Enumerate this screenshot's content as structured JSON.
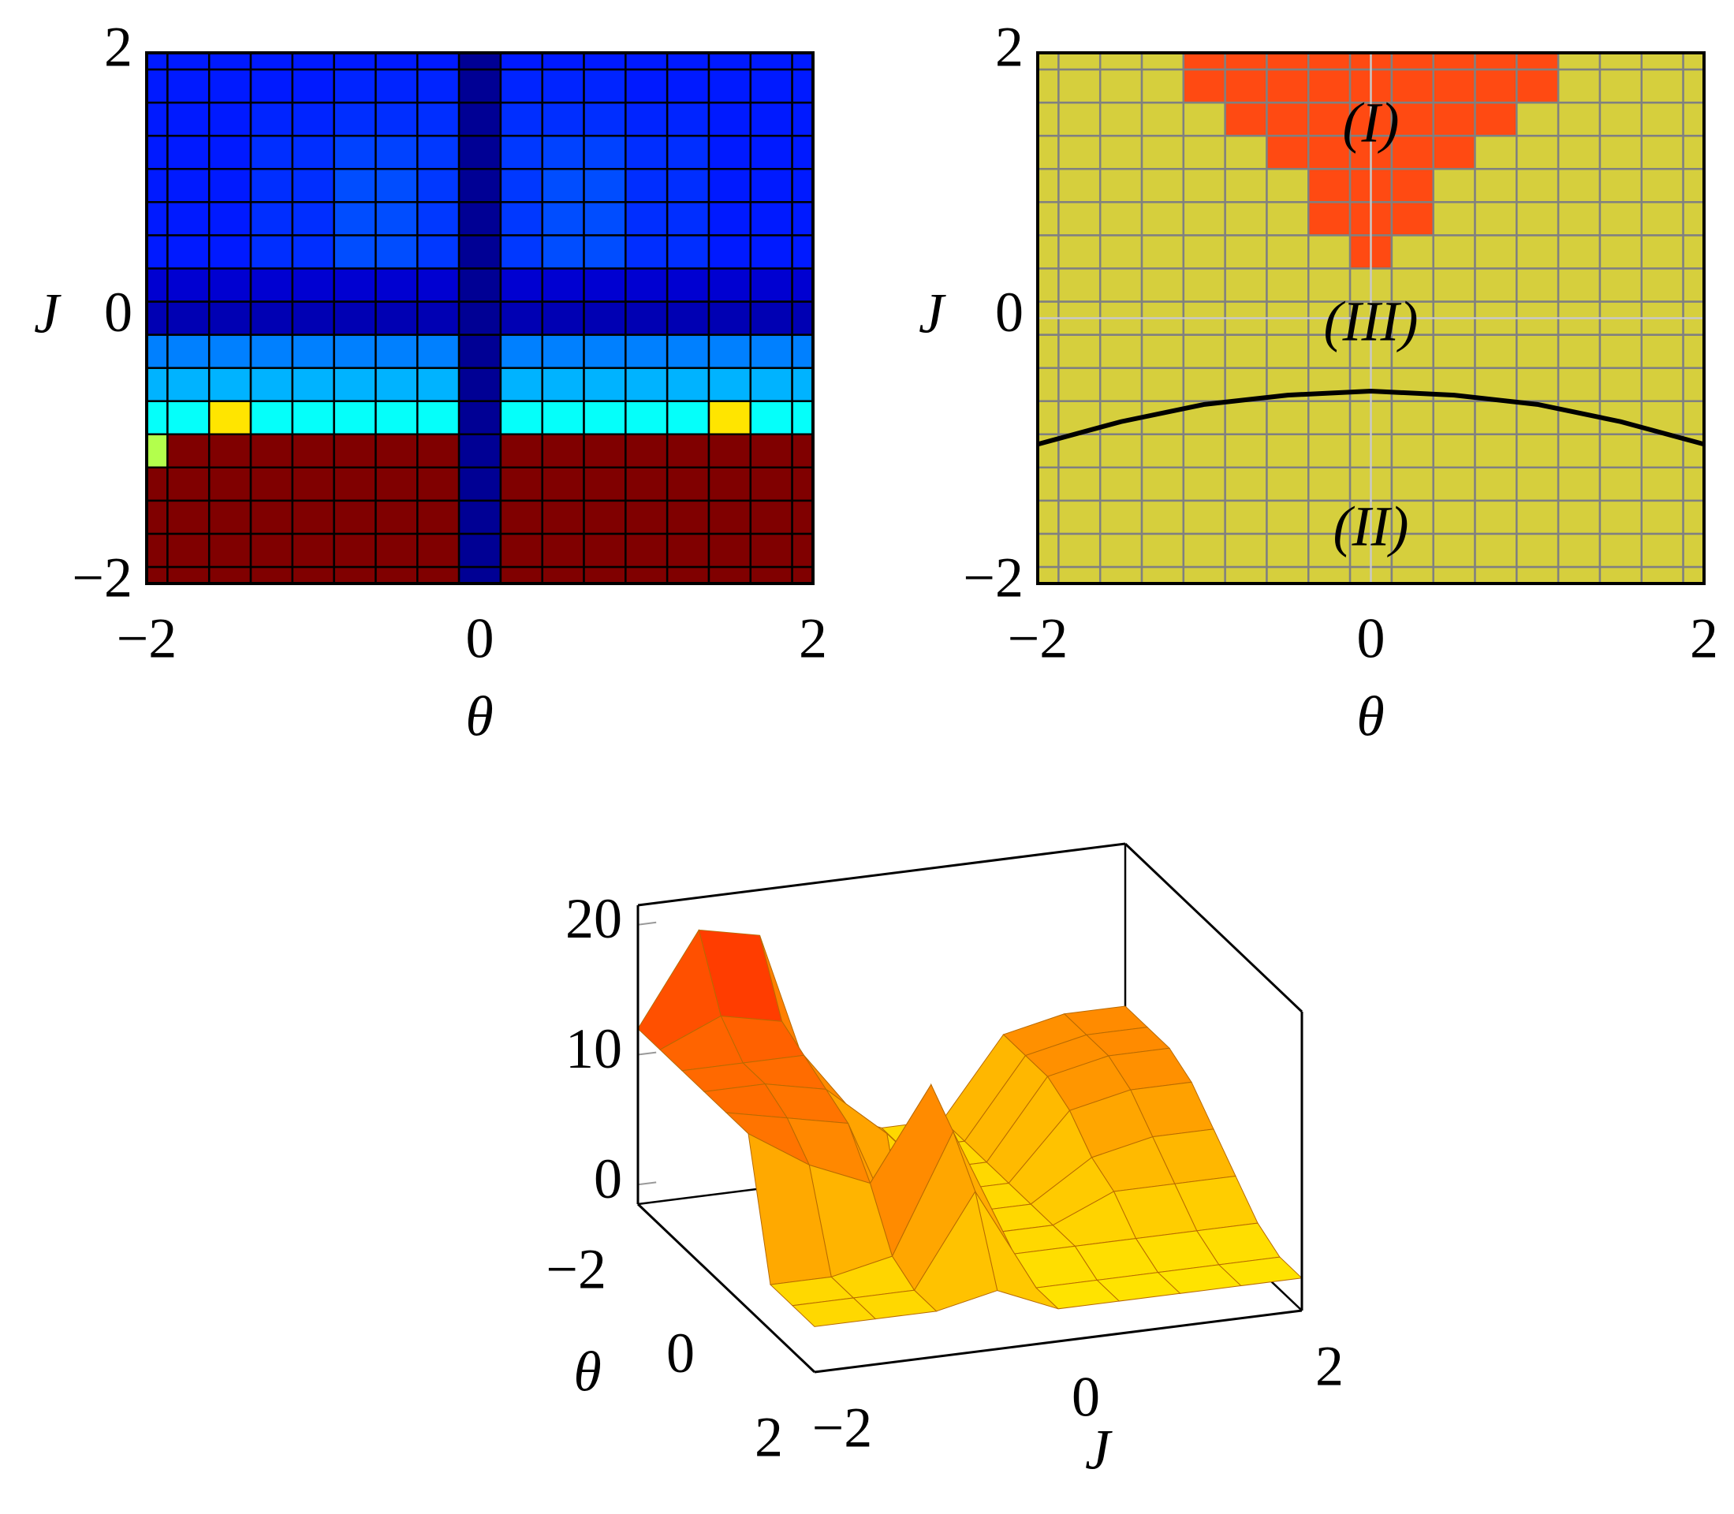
{
  "chart_data": [
    {
      "type": "heatmap",
      "xlabel": "θ",
      "ylabel": "J",
      "x": [
        -2,
        -1.75,
        -1.5,
        -1.25,
        -1,
        -0.75,
        -0.5,
        -0.25,
        0,
        0.25,
        0.5,
        0.75,
        1,
        1.25,
        1.5,
        1.75,
        2
      ],
      "y": [
        -2,
        -1.75,
        -1.5,
        -1.25,
        -1,
        -0.75,
        -0.5,
        -0.25,
        0,
        0.25,
        0.5,
        0.75,
        1,
        1.25,
        1.5,
        1.75,
        2
      ],
      "z": [
        [
          1,
          1,
          1,
          1,
          1,
          1,
          1,
          1,
          0.02,
          1,
          1,
          1,
          1,
          1,
          1,
          1,
          1
        ],
        [
          1,
          1,
          1,
          1,
          1,
          1,
          1,
          1,
          0.02,
          1,
          1,
          1,
          1,
          1,
          1,
          1,
          1
        ],
        [
          1,
          1,
          1,
          1,
          1,
          1,
          1,
          1,
          0.02,
          1,
          1,
          1,
          1,
          1,
          1,
          1,
          1
        ],
        [
          1,
          1,
          1,
          1,
          1,
          1,
          1,
          1,
          0.02,
          1,
          1,
          1,
          1,
          1,
          1,
          1,
          1
        ],
        [
          0.55,
          1,
          1,
          1,
          1,
          1,
          1,
          1,
          0.02,
          1,
          1,
          1,
          1,
          1,
          1,
          1,
          1
        ],
        [
          0.38,
          0.38,
          0.65,
          0.38,
          0.38,
          0.38,
          0.38,
          0.38,
          0.02,
          0.38,
          0.38,
          0.38,
          0.38,
          0.38,
          0.65,
          0.38,
          0.38
        ],
        [
          0.3,
          0.3,
          0.3,
          0.3,
          0.3,
          0.3,
          0.3,
          0.3,
          0.02,
          0.3,
          0.3,
          0.3,
          0.3,
          0.3,
          0.3,
          0.3,
          0.3
        ],
        [
          0.25,
          0.25,
          0.25,
          0.25,
          0.25,
          0.25,
          0.25,
          0.25,
          0.02,
          0.25,
          0.25,
          0.25,
          0.25,
          0.25,
          0.25,
          0.25,
          0.25
        ],
        [
          0.05,
          0.05,
          0.05,
          0.05,
          0.05,
          0.05,
          0.05,
          0.05,
          0.02,
          0.05,
          0.05,
          0.05,
          0.05,
          0.05,
          0.05,
          0.05,
          0.05
        ],
        [
          0.08,
          0.08,
          0.08,
          0.08,
          0.08,
          0.08,
          0.08,
          0.08,
          0.02,
          0.08,
          0.08,
          0.08,
          0.08,
          0.08,
          0.08,
          0.08,
          0.08
        ],
        [
          0.15,
          0.15,
          0.15,
          0.17,
          0.17,
          0.2,
          0.2,
          0.18,
          0.02,
          0.18,
          0.2,
          0.2,
          0.17,
          0.17,
          0.15,
          0.15,
          0.15
        ],
        [
          0.15,
          0.15,
          0.15,
          0.17,
          0.17,
          0.2,
          0.2,
          0.18,
          0.02,
          0.18,
          0.2,
          0.2,
          0.17,
          0.17,
          0.15,
          0.15,
          0.15
        ],
        [
          0.15,
          0.15,
          0.15,
          0.17,
          0.17,
          0.2,
          0.2,
          0.18,
          0.02,
          0.18,
          0.2,
          0.2,
          0.17,
          0.17,
          0.15,
          0.15,
          0.15
        ],
        [
          0.15,
          0.15,
          0.15,
          0.17,
          0.17,
          0.19,
          0.19,
          0.18,
          0.02,
          0.18,
          0.19,
          0.19,
          0.17,
          0.17,
          0.15,
          0.15,
          0.15
        ],
        [
          0.15,
          0.15,
          0.15,
          0.16,
          0.16,
          0.17,
          0.17,
          0.17,
          0.02,
          0.17,
          0.17,
          0.17,
          0.16,
          0.16,
          0.15,
          0.15,
          0.15
        ],
        [
          0.15,
          0.15,
          0.15,
          0.15,
          0.15,
          0.16,
          0.16,
          0.16,
          0.02,
          0.16,
          0.16,
          0.16,
          0.15,
          0.15,
          0.15,
          0.15,
          0.15
        ],
        [
          0.15,
          0.15,
          0.15,
          0.15,
          0.15,
          0.15,
          0.15,
          0.15,
          0.02,
          0.15,
          0.15,
          0.15,
          0.15,
          0.15,
          0.15,
          0.15,
          0.15
        ]
      ],
      "zlim": [
        0,
        1
      ],
      "colormap": "jet",
      "cell_border": "#000000",
      "grid": false,
      "xlim": [
        -2,
        2
      ],
      "ylim": [
        -2,
        2
      ],
      "xticks": [
        {
          "value": -2,
          "label": "−2"
        },
        0,
        2
      ],
      "yticks": [
        {
          "value": -2,
          "label": "−2"
        },
        0,
        2
      ]
    },
    {
      "type": "heatmap",
      "xlabel": "θ",
      "ylabel": "J",
      "x": [
        -2,
        -1.75,
        -1.5,
        -1.25,
        -1,
        -0.75,
        -0.5,
        -0.25,
        0,
        0.25,
        0.5,
        0.75,
        1,
        1.25,
        1.5,
        1.75,
        2
      ],
      "y": [
        -2,
        -1.75,
        -1.5,
        -1.25,
        -1,
        -0.75,
        -0.5,
        -0.25,
        0,
        0.25,
        0.5,
        0.75,
        1,
        1.25,
        1.5,
        1.75,
        2
      ],
      "z": [
        [
          0,
          0,
          0,
          0,
          0,
          0,
          0,
          0,
          0,
          0,
          0,
          0,
          0,
          0,
          0,
          0,
          0
        ],
        [
          0,
          0,
          0,
          0,
          0,
          0,
          0,
          0,
          0,
          0,
          0,
          0,
          0,
          0,
          0,
          0,
          0
        ],
        [
          0,
          0,
          0,
          0,
          0,
          0,
          0,
          0,
          0,
          0,
          0,
          0,
          0,
          0,
          0,
          0,
          0
        ],
        [
          0,
          0,
          0,
          0,
          0,
          0,
          0,
          0,
          0,
          0,
          0,
          0,
          0,
          0,
          0,
          0,
          0
        ],
        [
          0,
          0,
          0,
          0,
          0,
          0,
          0,
          0,
          0,
          0,
          0,
          0,
          0,
          0,
          0,
          0,
          0
        ],
        [
          0,
          0,
          0,
          0,
          0,
          0,
          0,
          0,
          0,
          0,
          0,
          0,
          0,
          0,
          0,
          0,
          0
        ],
        [
          0,
          0,
          0,
          0,
          0,
          0,
          0,
          0,
          0,
          0,
          0,
          0,
          0,
          0,
          0,
          0,
          0
        ],
        [
          0,
          0,
          0,
          0,
          0,
          0,
          0,
          0,
          0,
          0,
          0,
          0,
          0,
          0,
          0,
          0,
          0
        ],
        [
          0,
          0,
          0,
          0,
          0,
          0,
          0,
          0,
          0,
          0,
          0,
          0,
          0,
          0,
          0,
          0,
          0
        ],
        [
          0,
          0,
          0,
          0,
          0,
          0,
          0,
          0,
          0,
          0,
          0,
          0,
          0,
          0,
          0,
          0,
          0
        ],
        [
          0,
          0,
          0,
          0,
          0,
          0,
          0,
          0,
          1,
          0,
          0,
          0,
          0,
          0,
          0,
          0,
          0
        ],
        [
          0,
          0,
          0,
          0,
          0,
          0,
          0,
          1,
          1,
          1,
          0,
          0,
          0,
          0,
          0,
          0,
          0
        ],
        [
          0,
          0,
          0,
          0,
          0,
          0,
          0,
          1,
          1,
          1,
          0,
          0,
          0,
          0,
          0,
          0,
          0
        ],
        [
          0,
          0,
          0,
          0,
          0,
          0,
          1,
          1,
          1,
          1,
          1,
          0,
          0,
          0,
          0,
          0,
          0
        ],
        [
          0,
          0,
          0,
          0,
          0,
          1,
          1,
          1,
          1,
          1,
          1,
          1,
          0,
          0,
          0,
          0,
          0
        ],
        [
          0,
          0,
          0,
          0,
          1,
          1,
          1,
          1,
          1,
          1,
          1,
          1,
          1,
          0,
          0,
          0,
          0
        ],
        [
          0,
          0,
          0,
          0,
          1,
          1,
          1,
          1,
          1,
          1,
          1,
          1,
          1,
          0,
          0,
          0,
          0
        ]
      ],
      "colormap": "discrete",
      "colors": [
        "#d6cf3d",
        "#ff4a12"
      ],
      "cell_border": "#808080",
      "grid": true,
      "xlim": [
        -2,
        2
      ],
      "ylim": [
        -2,
        2
      ],
      "xticks": [
        {
          "value": -2,
          "label": "−2"
        },
        0,
        2
      ],
      "yticks": [
        {
          "value": -2,
          "label": "−2"
        },
        0,
        2
      ],
      "curve": {
        "x": [
          -2,
          -1.5,
          -1,
          -0.5,
          0,
          0.5,
          1,
          1.5,
          2
        ],
        "y": [
          -0.95,
          -0.78,
          -0.65,
          -0.58,
          -0.55,
          -0.58,
          -0.65,
          -0.78,
          -0.95
        ],
        "color": "#000000"
      },
      "annotations": [
        "(I)",
        "(III)",
        "(II)"
      ]
    },
    {
      "type": "surface3d",
      "xlabel": "J",
      "ylabel": "θ",
      "x": [
        -2,
        -1.5,
        -1,
        -0.5,
        0,
        0.5,
        1,
        1.5,
        2
      ],
      "y": [
        -2,
        -1.5,
        -1,
        -0.5,
        0,
        0.5,
        1,
        1.5,
        2
      ],
      "z": [
        [
          12,
          19,
          18,
          4,
          2,
          2,
          8,
          9,
          9
        ],
        [
          12,
          14,
          13,
          5,
          2,
          2,
          8,
          9,
          9
        ],
        [
          12,
          12,
          12,
          6,
          2,
          2,
          8,
          9,
          9
        ],
        [
          12,
          12,
          11,
          7,
          2,
          2,
          7,
          8,
          8
        ],
        [
          12,
          11,
          10,
          -1,
          2,
          2,
          5,
          6,
          6
        ],
        [
          12,
          9,
          7,
          14,
          2,
          2,
          4,
          4,
          4
        ],
        [
          2,
          2,
          3,
          12,
          2,
          2,
          2,
          2,
          2
        ],
        [
          2,
          2,
          2,
          9,
          1,
          1,
          1,
          1,
          1
        ],
        [
          2,
          2,
          2,
          3,
          1,
          1,
          1,
          1,
          1
        ]
      ],
      "colormap": "autumn",
      "xlim": [
        -2,
        2
      ],
      "ylim": [
        -2,
        2
      ],
      "zlim": [
        -1.5,
        21.5
      ],
      "xticks": [
        {
          "value": -2,
          "label": "−2"
        },
        0,
        2
      ],
      "yticks": [
        {
          "value": -2,
          "label": "−2"
        },
        0,
        2
      ],
      "zticks": [
        0,
        10,
        20
      ]
    }
  ]
}
